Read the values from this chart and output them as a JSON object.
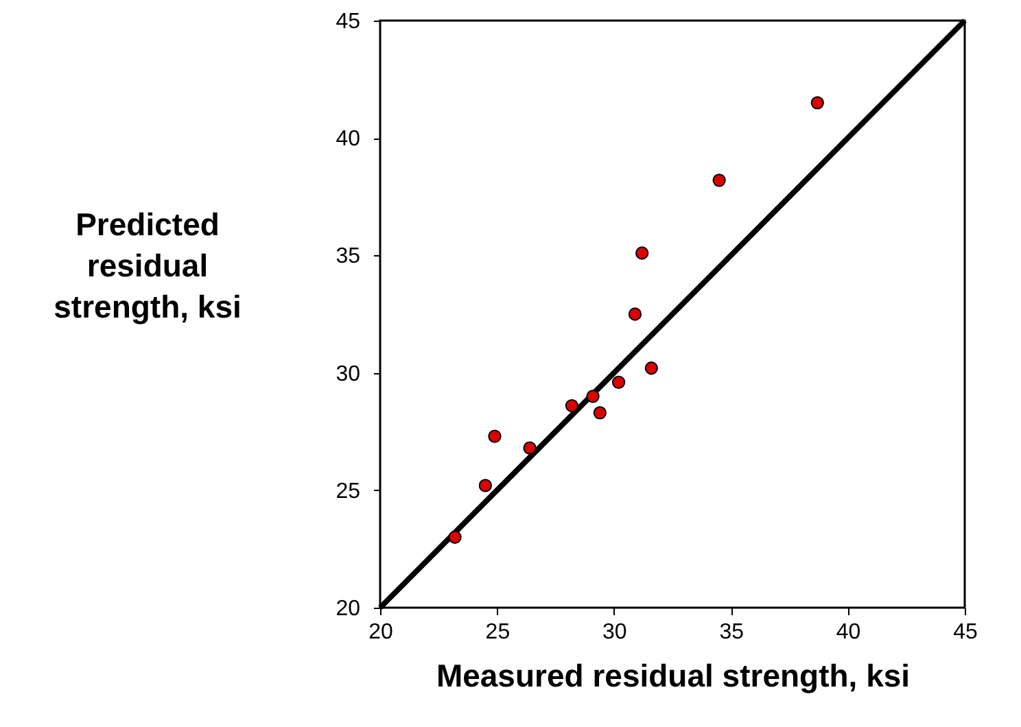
{
  "chart_data": {
    "type": "scatter",
    "xlabel": "Measured residual strength, ksi",
    "ylabel": "Predicted residual strength, ksi",
    "xlim": [
      20,
      45
    ],
    "ylim": [
      20,
      45
    ],
    "xticks": [
      20,
      25,
      30,
      35,
      40,
      45
    ],
    "yticks": [
      20,
      25,
      30,
      35,
      40,
      45
    ],
    "grid": false,
    "marker": "circle",
    "series": [
      {
        "color": "#dd0000",
        "x": [
          23.2,
          24.5,
          24.9,
          26.4,
          28.2,
          29.1,
          29.4,
          30.2,
          31.6,
          30.9,
          31.2,
          34.5,
          38.7
        ],
        "values": [
          23.0,
          25.2,
          27.3,
          26.8,
          28.6,
          29.0,
          28.3,
          29.6,
          30.2,
          32.5,
          35.1,
          38.2,
          41.5
        ]
      },
      {
        "type": "line",
        "color": "#000000",
        "line_style": "solid",
        "marker": "none",
        "x": [
          20,
          45
        ],
        "values": [
          20,
          45
        ]
      }
    ]
  }
}
